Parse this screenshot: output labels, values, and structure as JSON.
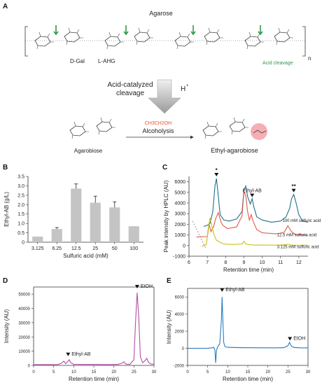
{
  "panel_a": {
    "letter": "A",
    "polymer_label": "Agarose",
    "unit_labels": [
      "D-Gal",
      "L-AHG"
    ],
    "subscript": "n",
    "acid_cleavage_label": "Acid cleavage",
    "step_label_line1": "Acid-catalyzed",
    "step_label_line2": "cleavage",
    "proton": "H",
    "proton_charge": "+",
    "reagent": "CH3CH2OH",
    "reaction_label": "Alcoholysis",
    "substrate_label": "Agarobiose",
    "product_label": "Ethyl-agarobiose",
    "colors": {
      "cleavage_arrow": "#2e9a4a",
      "reagent": "#e8512a",
      "highlight": "#f4a0a8"
    }
  },
  "panel_b": {
    "letter": "B"
  },
  "panel_c": {
    "letter": "C"
  },
  "panel_d": {
    "letter": "D"
  },
  "panel_e": {
    "letter": "E"
  },
  "chart_data": [
    {
      "type": "bar",
      "panel": "B",
      "categories": [
        "3.125",
        "6.25",
        "12.5",
        "25",
        "50",
        "100"
      ],
      "values": [
        0.3,
        0.7,
        2.85,
        2.1,
        1.85,
        0.85
      ],
      "errors": [
        0,
        0.08,
        0.25,
        0.35,
        0.3,
        0
      ],
      "xlabel": "Sulfuric acid (mM)",
      "ylabel": "Ethyl-AB (g/L)",
      "ylim": [
        0,
        3.5
      ],
      "yticks": [
        "0",
        "0.5",
        "1.0",
        "1.5",
        "2.0",
        "2.5",
        "3.0",
        "3.5"
      ],
      "bar_color": "#c4c4c4"
    },
    {
      "type": "line",
      "panel": "C",
      "xlabel": "Retention time (min)",
      "ylabel": "Peak intensity by HPLC (AU)",
      "xlim": [
        6,
        12.5
      ],
      "ylim": [
        -1000,
        6500
      ],
      "xticks": [
        "6",
        "7",
        "8",
        "9",
        "10",
        "11",
        "12"
      ],
      "yticks": [
        "-1000",
        "0",
        "1000",
        "2000",
        "3000",
        "4000",
        "5000",
        "6000"
      ],
      "annotations": [
        "*",
        "Ethyl-AB",
        "**"
      ],
      "series": [
        {
          "name": "100 mM sulfuric acid",
          "color": "#1f6f8b",
          "x": [
            6.8,
            7.0,
            7.15,
            7.3,
            7.42,
            7.5,
            7.58,
            7.7,
            7.9,
            8.2,
            8.6,
            8.9,
            9.0,
            9.1,
            9.2,
            9.35,
            9.45,
            9.55,
            9.7,
            10.0,
            10.5,
            11.0,
            11.3,
            11.5,
            11.6,
            11.72,
            11.85,
            12.0,
            12.2,
            12.5
          ],
          "y": [
            1800,
            1900,
            2100,
            3200,
            5600,
            6300,
            5000,
            2900,
            2400,
            2300,
            2500,
            3200,
            5200,
            5600,
            4600,
            3900,
            4400,
            3600,
            2700,
            2400,
            2200,
            2300,
            2700,
            3500,
            4400,
            4800,
            4000,
            2900,
            2300,
            2200
          ]
        },
        {
          "name": "12.5 mM sulfuric acid",
          "color": "#e05a4a",
          "x": [
            6.4,
            7.0,
            7.1,
            7.2,
            7.35,
            7.45,
            7.6,
            7.75,
            7.85,
            8.1,
            8.6,
            8.9,
            9.0,
            9.1,
            9.2,
            9.3,
            9.4,
            9.5,
            9.7,
            10.0,
            10.8,
            11.2,
            11.4,
            11.6,
            11.8,
            12.5
          ],
          "y": [
            800,
            850,
            2000,
            1300,
            1800,
            2500,
            3100,
            2200,
            1900,
            1600,
            1750,
            2800,
            5100,
            4700,
            3200,
            2400,
            2900,
            2300,
            1500,
            1200,
            1100,
            1250,
            1850,
            1300,
            1050,
            950
          ]
        },
        {
          "name": "3.125 mM sulfuric acid",
          "color": "#c8c010",
          "x": [
            6.7,
            6.95,
            7.05,
            7.15,
            7.25,
            7.35,
            7.5,
            7.7,
            7.9,
            8.4,
            8.9,
            9.0,
            9.1,
            9.3,
            9.5,
            10.0,
            11.0,
            11.4,
            11.6,
            12.5
          ],
          "y": [
            -100,
            100,
            1600,
            2600,
            1800,
            1100,
            500,
            300,
            150,
            100,
            150,
            400,
            150,
            80,
            60,
            40,
            40,
            120,
            40,
            30
          ]
        }
      ]
    },
    {
      "type": "line",
      "panel": "D",
      "xlabel": "Retention time (min)",
      "ylabel": "Intensity (AU)",
      "xlim": [
        0,
        30
      ],
      "ylim": [
        0,
        55000
      ],
      "xticks": [
        "0",
        "5",
        "10",
        "15",
        "20",
        "25",
        "30"
      ],
      "yticks": [
        "0",
        "10000",
        "20000",
        "30000",
        "40000",
        "50000"
      ],
      "annotations": [
        "Ethyl-AB",
        "EtOH"
      ],
      "series": [
        {
          "color": "#b34fa8",
          "x": [
            0,
            4,
            6,
            7,
            7.5,
            8,
            8.4,
            8.9,
            9.2,
            10,
            12,
            15,
            18,
            21,
            22,
            22.5,
            23,
            24,
            25,
            25.4,
            25.8,
            26.2,
            26.6,
            27.2,
            27.8,
            28.2,
            28.6,
            29.2,
            30
          ],
          "y": [
            600,
            600,
            600,
            1500,
            3000,
            1200,
            2500,
            4000,
            2000,
            800,
            700,
            700,
            600,
            700,
            1500,
            2500,
            900,
            800,
            4000,
            30000,
            51000,
            34000,
            6000,
            1800,
            3500,
            5000,
            2200,
            1000,
            800
          ]
        }
      ]
    },
    {
      "type": "line",
      "panel": "E",
      "xlabel": "Retention time (min)",
      "ylabel": "Intensity (AU)",
      "xlim": [
        0,
        30
      ],
      "ylim": [
        -2000,
        7000
      ],
      "xticks": [
        "0",
        "5",
        "10",
        "15",
        "20",
        "25",
        "30"
      ],
      "yticks": [
        "-2000",
        "0",
        "2000",
        "4000",
        "6000"
      ],
      "annotations": [
        "Ethyl-AB",
        "EtOH"
      ],
      "series": [
        {
          "color": "#2a7bc0",
          "x": [
            0,
            3,
            5,
            6,
            6.5,
            6.8,
            7.0,
            7.2,
            7.5,
            8.0,
            8.4,
            8.6,
            8.8,
            9.0,
            9.3,
            10,
            13,
            18,
            22,
            24,
            25,
            25.4,
            25.7,
            26,
            26.5,
            28,
            30
          ],
          "y": [
            0,
            0,
            10,
            50,
            120,
            -200,
            -1700,
            -250,
            200,
            500,
            3200,
            6000,
            3000,
            700,
            200,
            120,
            80,
            60,
            50,
            80,
            300,
            700,
            400,
            200,
            100,
            60,
            50
          ]
        }
      ]
    }
  ]
}
